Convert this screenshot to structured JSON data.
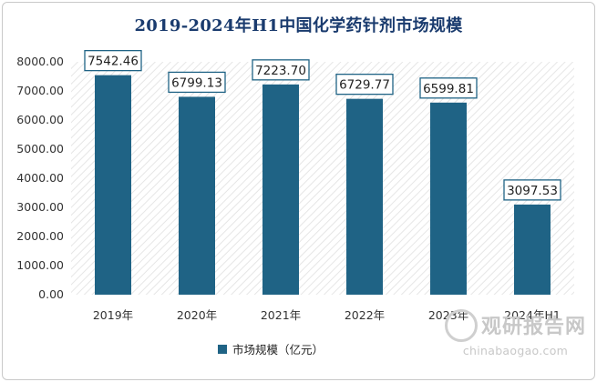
{
  "title": "2019-2024年H1中国化学药针剂市场规模",
  "legend_label": "市场规模（亿元）",
  "watermark": {
    "name": "观研报告网",
    "url": "chinabaogao.com"
  },
  "colors": {
    "bar": "#1f6385",
    "title": "#1a3b6e",
    "label_border": "#1f6385"
  },
  "chart_data": {
    "type": "bar",
    "categories": [
      "2019年",
      "2020年",
      "2021年",
      "2022年",
      "2023年",
      "2024年H1"
    ],
    "series": [
      {
        "name": "市场规模（亿元）",
        "values": [
          7542.46,
          6799.13,
          7223.7,
          6729.77,
          6599.81,
          3097.53
        ]
      }
    ],
    "value_labels": [
      "7542.46",
      "6799.13",
      "7223.70",
      "6729.77",
      "6599.81",
      "3097.53"
    ],
    "y_ticks": [
      "0.00",
      "1000.00",
      "2000.00",
      "3000.00",
      "4000.00",
      "5000.00",
      "6000.00",
      "7000.00",
      "8000.00"
    ],
    "ylim": [
      0,
      8000
    ],
    "grid": false,
    "legend_position": "bottom",
    "background": "diagonal-hatch"
  }
}
